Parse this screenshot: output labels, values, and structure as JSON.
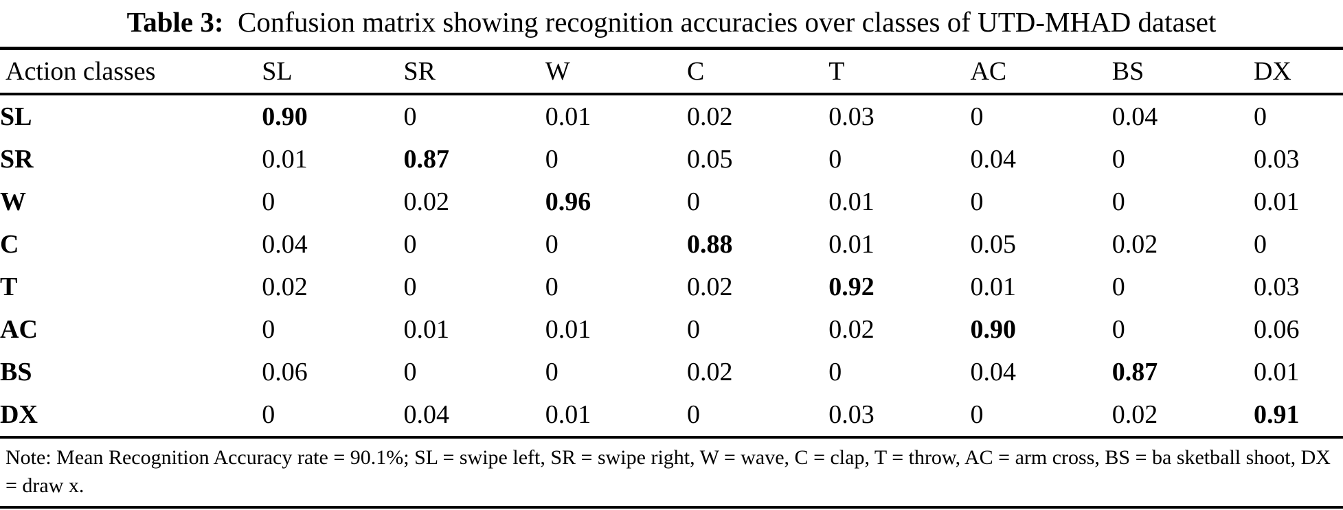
{
  "title": {
    "label": "Table 3:",
    "text": "Confusion matrix showing recognition accuracies over classes of UTD-MHAD dataset"
  },
  "table": {
    "header": [
      "Action classes",
      "SL",
      "SR",
      "W",
      "C",
      "T",
      "AC",
      "BS",
      "DX"
    ],
    "rows": [
      {
        "label": "SL",
        "cells": [
          "0.90",
          "0",
          "0.01",
          "0.02",
          "0.03",
          "0",
          "0.04",
          "0"
        ],
        "bold_col": 0
      },
      {
        "label": "SR",
        "cells": [
          "0.01",
          "0.87",
          "0",
          "0.05",
          "0",
          "0.04",
          "0",
          "0.03"
        ],
        "bold_col": 1
      },
      {
        "label": "W",
        "cells": [
          "0",
          "0.02",
          "0.96",
          "0",
          "0.01",
          "0",
          "0",
          "0.01"
        ],
        "bold_col": 2
      },
      {
        "label": "C",
        "cells": [
          "0.04",
          "0",
          "0",
          "0.88",
          "0.01",
          "0.05",
          "0.02",
          "0"
        ],
        "bold_col": 3
      },
      {
        "label": "T",
        "cells": [
          "0.02",
          "0",
          "0",
          "0.02",
          "0.92",
          "0.01",
          "0",
          "0.03"
        ],
        "bold_col": 4
      },
      {
        "label": "AC",
        "cells": [
          "0",
          "0.01",
          "0.01",
          "0",
          "0.02",
          "0.90",
          "0",
          "0.06"
        ],
        "bold_col": 5
      },
      {
        "label": "BS",
        "cells": [
          "0.06",
          "0",
          "0",
          "0.02",
          "0",
          "0.04",
          "0.87",
          "0.01"
        ],
        "bold_col": 6
      },
      {
        "label": "DX",
        "cells": [
          "0",
          "0.04",
          "0.01",
          "0",
          "0.03",
          "0",
          "0.02",
          "0.91"
        ],
        "bold_col": 7
      }
    ]
  },
  "note": "Note: Mean Recognition Accuracy rate = 90.1%; SL = swipe left, SR = swipe right, W = wave, C = clap, T = throw, AC = arm cross, BS = ba sketball shoot, DX = draw x."
}
